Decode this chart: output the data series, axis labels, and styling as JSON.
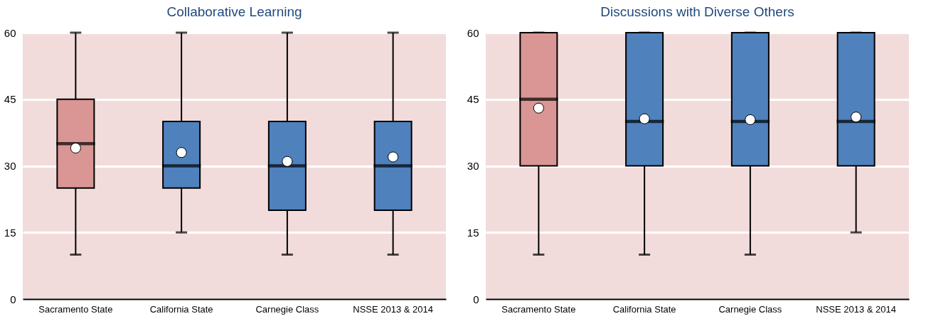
{
  "chart_data": [
    {
      "type": "box",
      "title": "Collaborative Learning",
      "categories": [
        "Sacramento State",
        "California State",
        "Carnegie Class",
        "NSSE 2013 & 2014"
      ],
      "colors": [
        "#d99694",
        "#4f81bd",
        "#4f81bd",
        "#4f81bd"
      ],
      "ylim": [
        0,
        60
      ],
      "yticks": [
        0,
        15,
        30,
        45,
        60
      ],
      "grid": "y",
      "boxes": [
        {
          "low": 10,
          "q1": 25,
          "median": 35,
          "q3": 45,
          "high": 60,
          "mean": 34
        },
        {
          "low": 15,
          "q1": 25,
          "median": 30,
          "q3": 40,
          "high": 60,
          "mean": 33
        },
        {
          "low": 10,
          "q1": 20,
          "median": 30,
          "q3": 40,
          "high": 60,
          "mean": 31
        },
        {
          "low": 10,
          "q1": 20,
          "median": 30,
          "q3": 40,
          "high": 60,
          "mean": 32
        }
      ]
    },
    {
      "type": "box",
      "title": "Discussions with Diverse Others",
      "categories": [
        "Sacramento State",
        "California State",
        "Carnegie Class",
        "NSSE 2013 & 2014"
      ],
      "colors": [
        "#d99694",
        "#4f81bd",
        "#4f81bd",
        "#4f81bd"
      ],
      "ylim": [
        0,
        60
      ],
      "yticks": [
        0,
        15,
        30,
        45,
        60
      ],
      "grid": "y",
      "boxes": [
        {
          "low": 10,
          "q1": 30,
          "median": 45,
          "q3": 60,
          "high": 60,
          "mean": 43
        },
        {
          "low": 10,
          "q1": 30,
          "median": 40,
          "q3": 60,
          "high": 60,
          "mean": 40.6
        },
        {
          "low": 10,
          "q1": 30,
          "median": 40,
          "q3": 60,
          "high": 60,
          "mean": 40.4
        },
        {
          "low": 15,
          "q1": 30,
          "median": 40,
          "q3": 60,
          "high": 60,
          "mean": 41
        }
      ]
    }
  ]
}
